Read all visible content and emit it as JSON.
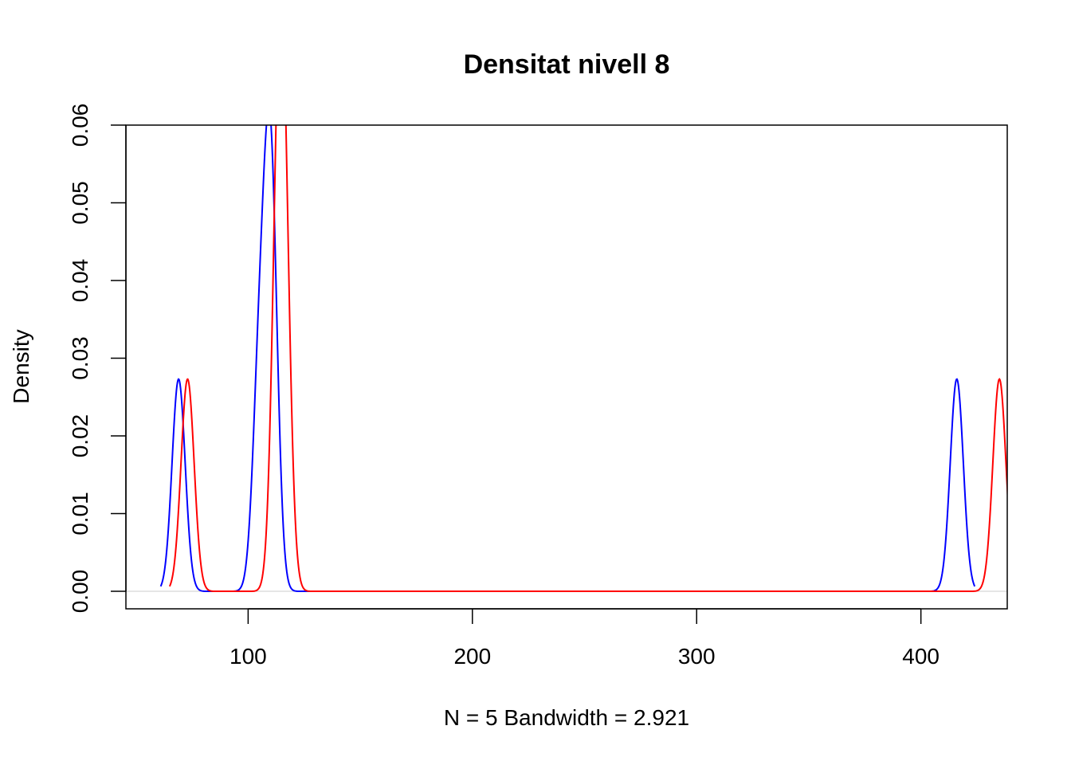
{
  "chart_data": {
    "type": "line",
    "title": "Densitat nivell 8",
    "xlabel": "N = 5   Bandwidth = 2.921",
    "ylabel": "Density",
    "xlim": [
      45.5,
      438.5
    ],
    "ylim": [
      -0.00225,
      0.06
    ],
    "x_ticks": [
      100,
      200,
      300,
      400
    ],
    "x_tick_labels": [
      "100",
      "200",
      "300",
      "400"
    ],
    "y_ticks": [
      0,
      0.01,
      0.02,
      0.03,
      0.04,
      0.05,
      0.06
    ],
    "y_tick_labels": [
      "0.00",
      "0.01",
      "0.02",
      "0.03",
      "0.04",
      "0.05",
      "0.06"
    ],
    "grid": false,
    "series": [
      {
        "color": "#0000ff",
        "bandwidth": 2.921,
        "x_range": [
          61,
          424
        ],
        "kernel_centers": [
          69,
          105,
          110,
          110,
          416
        ]
      },
      {
        "color": "#ff0000",
        "bandwidth": 2.921,
        "x_range": [
          65,
          445
        ],
        "kernel_centers": [
          73,
          114,
          114,
          116,
          435
        ]
      }
    ]
  }
}
